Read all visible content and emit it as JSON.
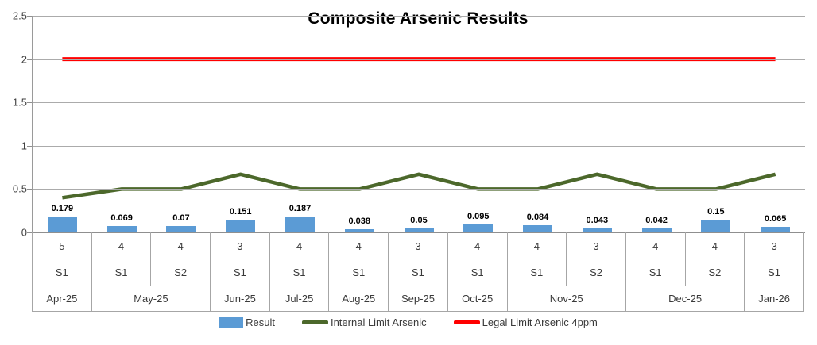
{
  "title": "Composite Arsenic Results",
  "colors": {
    "bar": "#5B9BD5",
    "internal_limit_line": "#4C682B",
    "legal_limit_line": "#FF0000",
    "gridline": "#ABABAB",
    "table_border": "#A6A6A6"
  },
  "y_axis": {
    "min": 0,
    "max": 2.5,
    "step": 0.5,
    "tick_labels": [
      "0",
      "0.5",
      "1",
      "1.5",
      "2",
      "2.5"
    ]
  },
  "legend": [
    {
      "label": "Result",
      "swatch": "bar",
      "color": "#5B9BD5"
    },
    {
      "label": "Internal Limit Arsenic",
      "swatch": "line",
      "color": "#4C682B"
    },
    {
      "label": "Legal Limit Arsenic 4ppm",
      "swatch": "line",
      "color": "#FF0000"
    }
  ],
  "chart_data": {
    "type": "bar",
    "title": "Composite Arsenic Results",
    "xlabel": "",
    "ylabel": "",
    "ylim": [
      0,
      2.5
    ],
    "grid": true,
    "legend_position": "bottom",
    "category_rows": {
      "counts": [
        "5",
        "4",
        "4",
        "3",
        "4",
        "4",
        "3",
        "4",
        "4",
        "3",
        "4",
        "4",
        "3"
      ],
      "samples": [
        "S1",
        "S1",
        "S2",
        "S1",
        "S1",
        "S1",
        "S1",
        "S1",
        "S1",
        "S2",
        "S1",
        "S2",
        "S1"
      ],
      "month_groups": [
        {
          "label": "Apr-25",
          "span": 1
        },
        {
          "label": "May-25",
          "span": 2
        },
        {
          "label": "Jun-25",
          "span": 1
        },
        {
          "label": "Jul-25",
          "span": 1
        },
        {
          "label": "Aug-25",
          "span": 1
        },
        {
          "label": "Sep-25",
          "span": 1
        },
        {
          "label": "Oct-25",
          "span": 1
        },
        {
          "label": "Nov-25",
          "span": 2
        },
        {
          "label": "Dec-25",
          "span": 2
        },
        {
          "label": "Jan-26",
          "span": 1
        }
      ]
    },
    "series": [
      {
        "name": "Result",
        "type": "bar",
        "values": [
          0.179,
          0.069,
          0.07,
          0.151,
          0.187,
          0.038,
          0.05,
          0.095,
          0.084,
          0.043,
          0.042,
          0.15,
          0.065
        ],
        "data_labels": [
          "0.179",
          "0.069",
          "0.07",
          "0.151",
          "0.187",
          "0.038",
          "0.05",
          "0.095",
          "0.084",
          "0.043",
          "0.042",
          "0.15",
          "0.065"
        ]
      },
      {
        "name": "Internal Limit Arsenic",
        "type": "line",
        "values": [
          0.4,
          0.5,
          0.5,
          0.67,
          0.5,
          0.5,
          0.67,
          0.5,
          0.5,
          0.67,
          0.5,
          0.5,
          0.67
        ]
      },
      {
        "name": "Legal Limit Arsenic 4ppm",
        "type": "line",
        "values": [
          2,
          2,
          2,
          2,
          2,
          2,
          2,
          2,
          2,
          2,
          2,
          2,
          2
        ]
      }
    ]
  }
}
